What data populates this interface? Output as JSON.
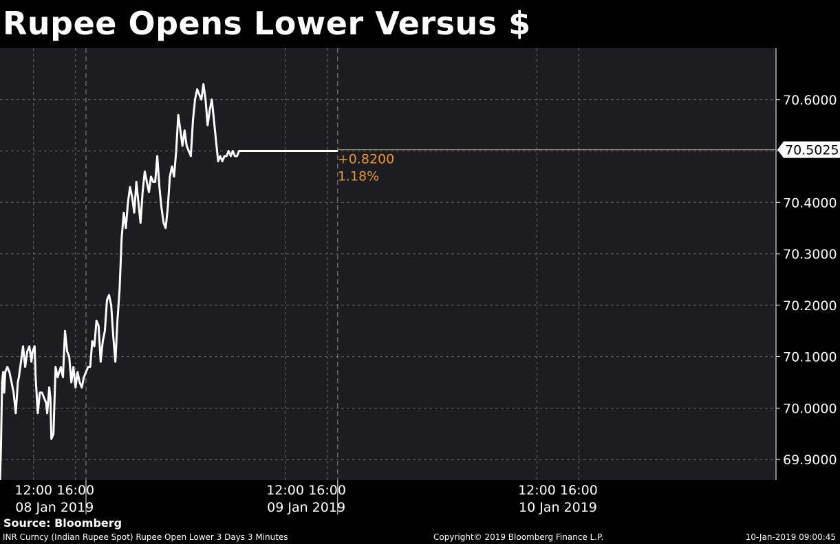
{
  "title": "Rupee Opens Lower Versus $",
  "source_label": "Source: Bloomberg",
  "footer": {
    "left": "INR Curncy (Indian Rupee Spot) Rupee Open Lower 3 Days 3 Minutes",
    "center": "Copyright© 2019 Bloomberg Finance L.P.",
    "right": "10-Jan-2019 09:00:45"
  },
  "colors": {
    "background": "#1d1c21",
    "line": "#ffffff",
    "accent": "#e8962e",
    "grid": "#6a6a70"
  },
  "chart_data": {
    "type": "line",
    "title": "Rupee Opens Lower Versus $",
    "ylim": [
      69.86,
      70.7
    ],
    "xlim_hours": [
      8.8,
      82.8
    ],
    "x_axis_unit": "hours from 08 Jan 2019 00:00",
    "yticks": [
      "69.9000",
      "70.0000",
      "70.1000",
      "70.2000",
      "70.3000",
      "70.4000",
      "70.5000",
      "70.6000"
    ],
    "ytick_values": [
      69.9,
      70.0,
      70.1,
      70.2,
      70.3,
      70.4,
      70.5,
      70.6
    ],
    "xticks": [
      {
        "h": 12,
        "label": "12:00"
      },
      {
        "h": 16,
        "label": "16:00"
      },
      {
        "h": 36,
        "label": "12:00"
      },
      {
        "h": 40,
        "label": "16:00"
      },
      {
        "h": 60,
        "label": "12:00"
      },
      {
        "h": 64,
        "label": "16:00"
      }
    ],
    "day_labels": [
      {
        "h": 14,
        "label": "08 Jan 2019"
      },
      {
        "h": 38,
        "label": "09 Jan 2019"
      },
      {
        "h": 62,
        "label": "10 Jan 2019"
      }
    ],
    "day_separators_h": [
      17,
      41
    ],
    "grid": true,
    "last_value": 70.5025,
    "last_value_label": "70.5025",
    "change_label": "+0.8200",
    "change_pct_label": "1.18%",
    "series": [
      {
        "x": [
          8.8,
          8.9,
          9.0,
          9.1,
          9.2,
          9.3,
          9.5,
          9.7,
          9.9,
          10.1,
          10.3,
          10.5,
          10.6,
          10.8,
          11.0,
          11.2,
          11.4,
          11.6,
          11.8,
          11.9,
          12.1,
          12.2,
          12.4,
          12.6,
          12.8,
          13.0,
          13.2,
          13.3,
          13.5,
          13.6,
          13.7,
          13.9,
          14.1,
          14.3,
          14.6,
          14.8,
          15.0,
          15.2,
          15.4,
          15.6,
          15.8,
          16.0,
          16.2,
          16.4,
          16.6,
          16.8,
          17.0,
          17.2,
          17.4,
          17.6,
          17.8,
          18.0,
          18.2,
          18.4,
          18.6,
          18.8,
          19.0,
          19.2,
          19.4,
          19.6,
          19.8,
          20.0,
          20.2,
          20.4,
          20.6,
          20.8,
          21.0,
          21.2,
          21.4,
          21.6,
          21.8,
          22.0,
          22.2,
          22.4,
          22.6,
          22.8,
          23.0,
          23.2,
          23.4,
          23.6,
          23.8,
          24.0,
          24.2,
          24.4,
          24.6,
          24.8,
          25.0,
          25.2,
          25.4,
          25.6,
          25.8,
          26.0,
          26.2,
          26.4,
          26.6,
          26.8,
          27.0,
          27.2,
          27.4,
          27.6,
          27.8,
          28.0,
          28.2,
          28.4,
          28.6,
          28.8,
          29.0,
          29.2,
          29.4,
          29.6,
          29.8,
          30.0,
          30.2,
          30.4,
          30.6,
          30.8,
          31.0,
          31.2,
          31.4,
          31.6,
          31.8,
          32.0,
          32.2,
          32.4,
          32.6,
          32.8,
          33.0,
          33.2,
          33.4,
          33.6,
          33.8,
          34.0,
          34.2,
          34.4,
          34.6,
          34.8,
          35.0,
          35.2,
          35.4,
          35.6,
          35.8,
          36.0,
          36.2,
          36.4,
          36.6,
          36.8,
          37.0,
          37.2,
          37.4,
          37.6,
          37.8,
          38.0,
          38.2,
          38.4,
          38.6,
          38.8,
          39.0,
          39.2,
          39.4,
          39.6,
          39.8,
          40.0,
          40.2,
          40.4,
          40.6,
          40.8,
          41.0
        ],
        "y": [
          69.86,
          69.93,
          70.05,
          70.07,
          70.03,
          70.07,
          70.08,
          70.07,
          70.05,
          70.03,
          69.99,
          70.05,
          70.06,
          70.09,
          70.12,
          70.08,
          70.11,
          70.12,
          70.09,
          70.11,
          70.12,
          70.06,
          69.99,
          70.03,
          70.03,
          70.02,
          70.01,
          69.99,
          70.04,
          70.02,
          69.94,
          69.95,
          70.08,
          70.06,
          70.08,
          70.06,
          70.15,
          70.11,
          70.1,
          70.05,
          70.08,
          70.04,
          70.07,
          70.05,
          70.04,
          70.06,
          70.07,
          70.08,
          70.08,
          70.13,
          70.12,
          70.17,
          70.16,
          70.09,
          70.13,
          70.15,
          70.21,
          70.22,
          70.2,
          70.14,
          70.09,
          70.17,
          70.23,
          70.33,
          70.38,
          70.35,
          70.4,
          70.43,
          70.41,
          70.38,
          70.44,
          70.4,
          70.36,
          70.42,
          70.46,
          70.44,
          70.42,
          70.45,
          70.44,
          70.44,
          70.49,
          70.43,
          70.39,
          70.36,
          70.35,
          70.39,
          70.45,
          70.47,
          70.45,
          70.5,
          70.57,
          70.54,
          70.51,
          70.54,
          70.51,
          70.5,
          70.49,
          70.56,
          70.6,
          70.62,
          70.61,
          70.6,
          70.63,
          70.6,
          70.55,
          70.58,
          70.6,
          70.56,
          70.52,
          70.48,
          70.49,
          70.48,
          70.49,
          70.49,
          70.5,
          70.49,
          70.5,
          70.49,
          70.49,
          70.5,
          70.5,
          70.5,
          70.5,
          70.5,
          70.5,
          70.5,
          70.5,
          70.5,
          70.5,
          70.5,
          70.5,
          70.5,
          70.5,
          70.5,
          70.5,
          70.5,
          70.5,
          70.5,
          70.5,
          70.5,
          70.5,
          70.5,
          70.5,
          70.5,
          70.5,
          70.5,
          70.5,
          70.5,
          70.5,
          70.5,
          70.5,
          70.5,
          70.5,
          70.5,
          70.5,
          70.5,
          70.5,
          70.5,
          70.5,
          70.5,
          70.5,
          70.5,
          70.5,
          70.5,
          70.5,
          70.5,
          70.5
        ]
      }
    ]
  }
}
